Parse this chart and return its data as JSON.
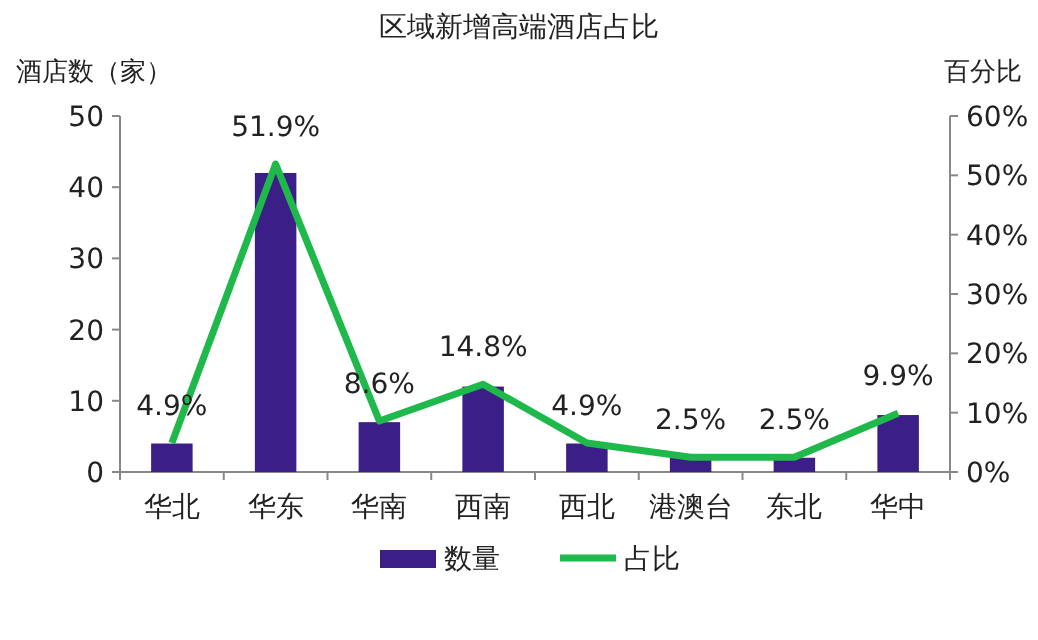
{
  "chart_data": {
    "type": "bar",
    "title": "区域新增高端酒店占比",
    "ylabel": "酒店数（家）",
    "y2label": "百分比",
    "categories": [
      "华北",
      "华东",
      "华南",
      "西南",
      "西北",
      "港澳台",
      "东北",
      "华中"
    ],
    "series": [
      {
        "name": "数量",
        "color": "#3b1f86",
        "values": [
          4,
          42,
          7,
          12,
          4,
          2,
          2,
          8
        ]
      },
      {
        "name": "占比",
        "type": "line",
        "axis": "y2",
        "color": "#1fb84a",
        "line_style": "solid",
        "values": [
          4.9,
          51.9,
          8.6,
          14.8,
          4.9,
          2.5,
          2.5,
          9.9
        ],
        "value_labels": [
          "4.9%",
          "51.9%",
          "8.6%",
          "14.8%",
          "4.9%",
          "2.5%",
          "2.5%",
          "9.9%"
        ]
      }
    ],
    "ylim": [
      0,
      50
    ],
    "yticks": [
      0,
      10,
      20,
      30,
      40,
      50
    ],
    "y2lim": [
      0,
      60
    ],
    "y2ticks": [
      {
        "value": 0,
        "label": "0%"
      },
      {
        "value": 10,
        "label": "10%"
      },
      {
        "value": 20,
        "label": "20%"
      },
      {
        "value": 30,
        "label": "30%"
      },
      {
        "value": 40,
        "label": "40%"
      },
      {
        "value": 50,
        "label": "50%"
      },
      {
        "value": 60,
        "label": "60%"
      }
    ],
    "grid": false,
    "legend": "bottom"
  }
}
